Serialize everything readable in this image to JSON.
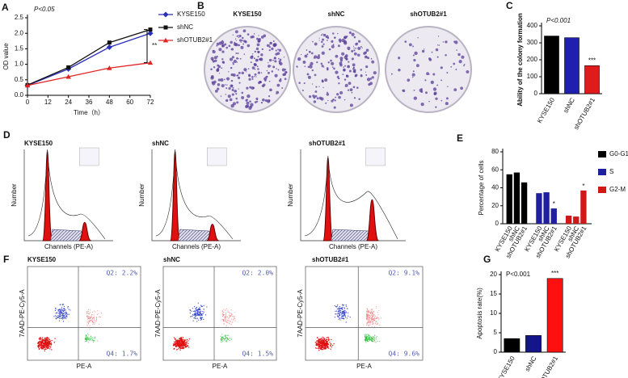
{
  "panels": {
    "labels": [
      "A",
      "B",
      "C",
      "D",
      "E",
      "F",
      "G"
    ]
  },
  "colony_plates": {
    "labels": [
      "KYSE150",
      "shNC",
      "shOTUB2#1"
    ]
  },
  "cell_cycle": {
    "labels": [
      "KYSE150",
      "shNC",
      "shOTUB2#1"
    ],
    "xlabel": "Channels (PE-A)",
    "ylabel": "Number"
  },
  "apoptosis_flow": {
    "labels": [
      "KYSE150",
      "shNC",
      "shOTUB2#1"
    ],
    "q2": [
      "Q2: 2.2%",
      "Q2: 2.0%",
      "Q2: 9.1%"
    ],
    "q4": [
      "Q4: 1.7%",
      "Q4: 1.5%",
      "Q4: 9.6%"
    ],
    "xlabel": "PE-A",
    "ylabel": "7AAD-PE-Cy5-A"
  },
  "chart_data": [
    {
      "type": "line",
      "x": [
        0,
        24,
        48,
        72
      ],
      "xlim": [
        0,
        72
      ],
      "xticks": [
        0,
        12,
        24,
        36,
        48,
        60,
        72
      ],
      "ylim": [
        0,
        2.5
      ],
      "yticks": [
        {
          "value": 0,
          "label": "0.0"
        },
        0.5,
        {
          "value": 1,
          "label": "1.0"
        },
        1.5,
        {
          "value": 2,
          "label": "2.0"
        },
        2.5
      ],
      "xlabel": "Time（h）",
      "ylabel": "OD value",
      "annotations": [
        "P<0.05",
        "**"
      ],
      "series": [
        {
          "name": "KYSE150",
          "color": "#2a2fb8",
          "values": [
            0.32,
            0.85,
            1.55,
            2.0
          ]
        },
        {
          "name": "shNC",
          "color": "#111111",
          "values": [
            0.33,
            0.9,
            1.7,
            2.12
          ]
        },
        {
          "name": "shOTUB2#1",
          "color": "#e02424",
          "values": [
            0.32,
            0.6,
            0.88,
            1.05
          ]
        }
      ]
    },
    {
      "type": "bar",
      "categories": [
        "KYSE150",
        "shNC",
        "shOTUB2#1"
      ],
      "values": [
        340,
        330,
        165
      ],
      "colors": [
        "#000000",
        "#1f1fb0",
        "#e01b1b"
      ],
      "ylim": [
        0,
        400
      ],
      "yticks": [
        0,
        100,
        200,
        300,
        400
      ],
      "ylabel": "Ability of the colony formation",
      "annotations": [
        "P<0.001",
        "***"
      ]
    },
    {
      "type": "grouped",
      "categories": [
        "KYSE150",
        "shNC",
        "shOTUB2#1"
      ],
      "ylim": [
        0,
        80
      ],
      "yticks": [
        0,
        20,
        40,
        60,
        80
      ],
      "ylabel": "Percentage of cells",
      "annotations": [
        "*",
        "*"
      ],
      "series": [
        {
          "name": "G0-G1",
          "color": "#000000",
          "values": [
            55,
            57,
            46
          ]
        },
        {
          "name": "S",
          "color": "#1f1fa0",
          "values": [
            34,
            35,
            17
          ]
        },
        {
          "name": "G2-M",
          "color": "#d01818",
          "values": [
            9,
            8,
            37
          ]
        }
      ]
    },
    {
      "type": "bar",
      "categories": [
        "KYSE150",
        "shNC",
        "shOTUB2#1"
      ],
      "values": [
        3.5,
        4.3,
        19
      ],
      "colors": [
        "#000000",
        "#15158a",
        "#ff1010"
      ],
      "ylim": [
        0,
        20
      ],
      "yticks": [
        0,
        5,
        10,
        15,
        20
      ],
      "ylabel": "Apoptosis rate(%)",
      "annotations": [
        "P<0.001",
        "***"
      ]
    }
  ]
}
